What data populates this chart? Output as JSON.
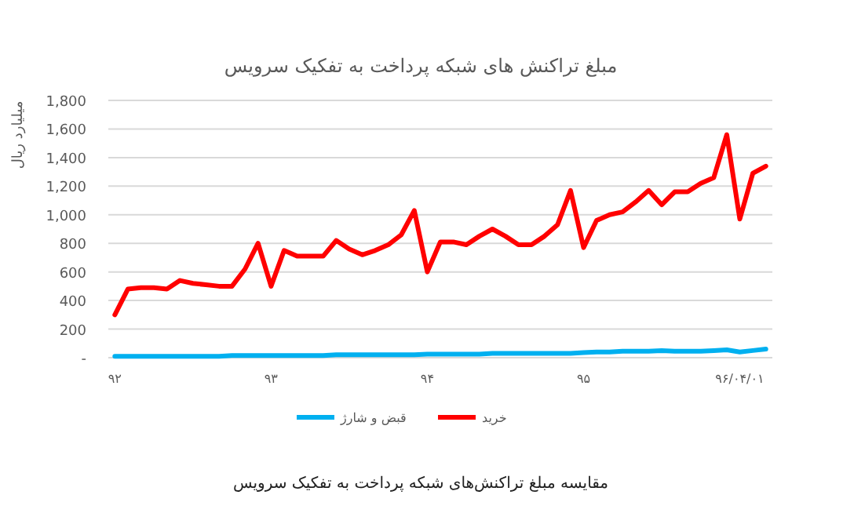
{
  "chart_data": {
    "type": "line",
    "title": "مبلغ تراکنش های شبکه پرداخت به تفکیک سرویس",
    "ylabel": "میلیارد ریال",
    "categories": [
      "۹۲",
      null,
      null,
      null,
      null,
      null,
      null,
      null,
      null,
      null,
      null,
      null,
      "۹۳",
      null,
      null,
      null,
      null,
      null,
      null,
      null,
      null,
      null,
      null,
      null,
      "۹۴",
      null,
      null,
      null,
      null,
      null,
      null,
      null,
      null,
      null,
      null,
      null,
      "۹۵",
      null,
      null,
      null,
      null,
      null,
      null,
      null,
      null,
      null,
      null,
      null,
      "۹۶/۰۴/۰۱",
      null,
      null
    ],
    "series": [
      {
        "name": "خرید",
        "color": "#ff0000",
        "values": [
          300,
          480,
          490,
          490,
          480,
          540,
          520,
          510,
          500,
          500,
          620,
          800,
          500,
          750,
          710,
          710,
          710,
          820,
          760,
          720,
          750,
          790,
          860,
          1030,
          600,
          810,
          810,
          790,
          850,
          900,
          850,
          790,
          790,
          850,
          930,
          1170,
          770,
          960,
          1000,
          1020,
          1090,
          1170,
          1070,
          1160,
          1160,
          1220,
          1260,
          1560,
          970,
          1290,
          1340
        ]
      },
      {
        "name": "قبض و شارژ",
        "color": "#00b0f0",
        "values": [
          10,
          10,
          10,
          10,
          10,
          10,
          10,
          10,
          10,
          15,
          15,
          15,
          15,
          15,
          15,
          15,
          15,
          20,
          20,
          20,
          20,
          20,
          20,
          20,
          25,
          25,
          25,
          25,
          25,
          30,
          30,
          30,
          30,
          30,
          30,
          30,
          35,
          40,
          40,
          45,
          45,
          45,
          50,
          45,
          45,
          45,
          50,
          55,
          40,
          50,
          60
        ]
      }
    ],
    "ylim": [
      0,
      1800
    ],
    "yticks": [
      {
        "value": 0,
        "label": "-"
      },
      200,
      400,
      600,
      800,
      {
        "value": 1000,
        "label": "1,000"
      },
      {
        "value": 1200,
        "label": "1,200"
      },
      {
        "value": 1400,
        "label": "1,400"
      },
      {
        "value": 1600,
        "label": "1,600"
      },
      {
        "value": 1800,
        "label": "1,800"
      }
    ],
    "grid": "y",
    "legend": "bottom",
    "annotations": [
      "مقایسه مبلغ تراکنش‌های شبکه پرداخت به تفکیک سرویس"
    ]
  }
}
